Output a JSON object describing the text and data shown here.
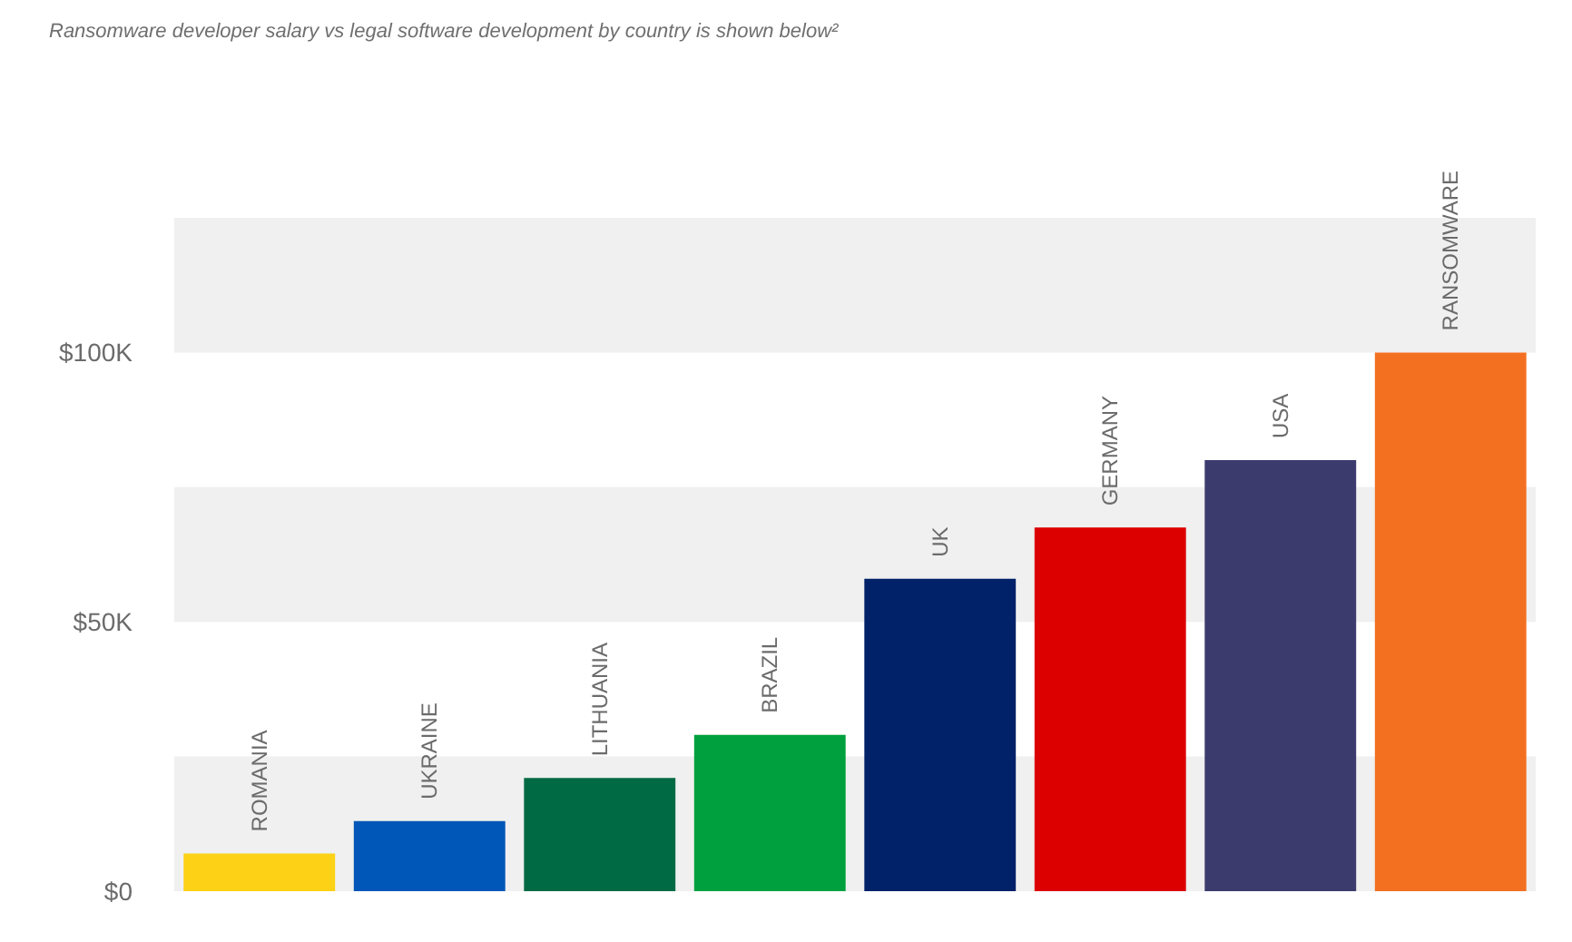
{
  "chart_data": {
    "type": "bar",
    "title": "Ransomware developer salary vs legal software development by country is shown below²",
    "categories": [
      "ROMANIA",
      "UKRAINE",
      "LITHUANIA",
      "BRAZIL",
      "UK",
      "GERMANY",
      "USA",
      "RANSOMWARE"
    ],
    "values": [
      7000,
      13000,
      21000,
      29000,
      58000,
      67500,
      80000,
      100000
    ],
    "colors": [
      "#fcd116",
      "#0057b7",
      "#006a44",
      "#00a03e",
      "#012169",
      "#dd0000",
      "#3c3b6e",
      "#f37021"
    ],
    "ylim": [
      0,
      125000
    ],
    "yticks": [
      {
        "value": 0,
        "label": "$0"
      },
      {
        "value": 50000,
        "label": "$50K"
      },
      {
        "value": 100000,
        "label": "$100K"
      }
    ],
    "bands": [
      {
        "axis": "y",
        "from": 0,
        "to": 25000,
        "color": "#eff0ef"
      },
      {
        "axis": "y",
        "from": 50000,
        "to": 75000,
        "color": "#eff0ef"
      },
      {
        "axis": "y",
        "from": 100000,
        "to": 125000,
        "color": "#eff0ef"
      }
    ],
    "tick_labels": "y"
  }
}
